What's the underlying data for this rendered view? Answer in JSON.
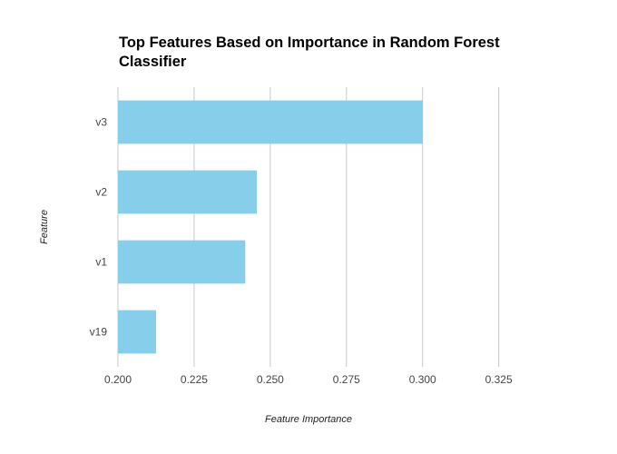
{
  "chart_data": {
    "type": "bar",
    "orientation": "horizontal",
    "title": "Top Features Based on Importance in Random Forest Classifier",
    "xlabel": "Feature Importance",
    "ylabel": "Feature",
    "categories": [
      "v3",
      "v2",
      "v1",
      "v19"
    ],
    "values": [
      0.3001,
      0.2456,
      0.2418,
      0.2125
    ],
    "xlim": [
      0.2,
      0.34
    ],
    "xticks": [
      "0.200",
      "0.225",
      "0.250",
      "0.275",
      "0.300",
      "0.325"
    ],
    "grid": true,
    "bar_color": "#87CEEB",
    "grid_color": "#c8c8c8"
  }
}
